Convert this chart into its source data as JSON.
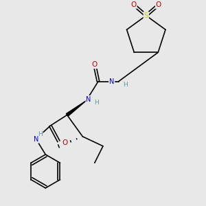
{
  "bg_color": "#e8e8e8",
  "atom_colors": {
    "N": "#0000cc",
    "O": "#cc0000",
    "S": "#cccc00",
    "H": "#5a9a9a"
  },
  "bond_color": "#000000",
  "figsize": [
    3.0,
    3.0
  ],
  "dpi": 100
}
